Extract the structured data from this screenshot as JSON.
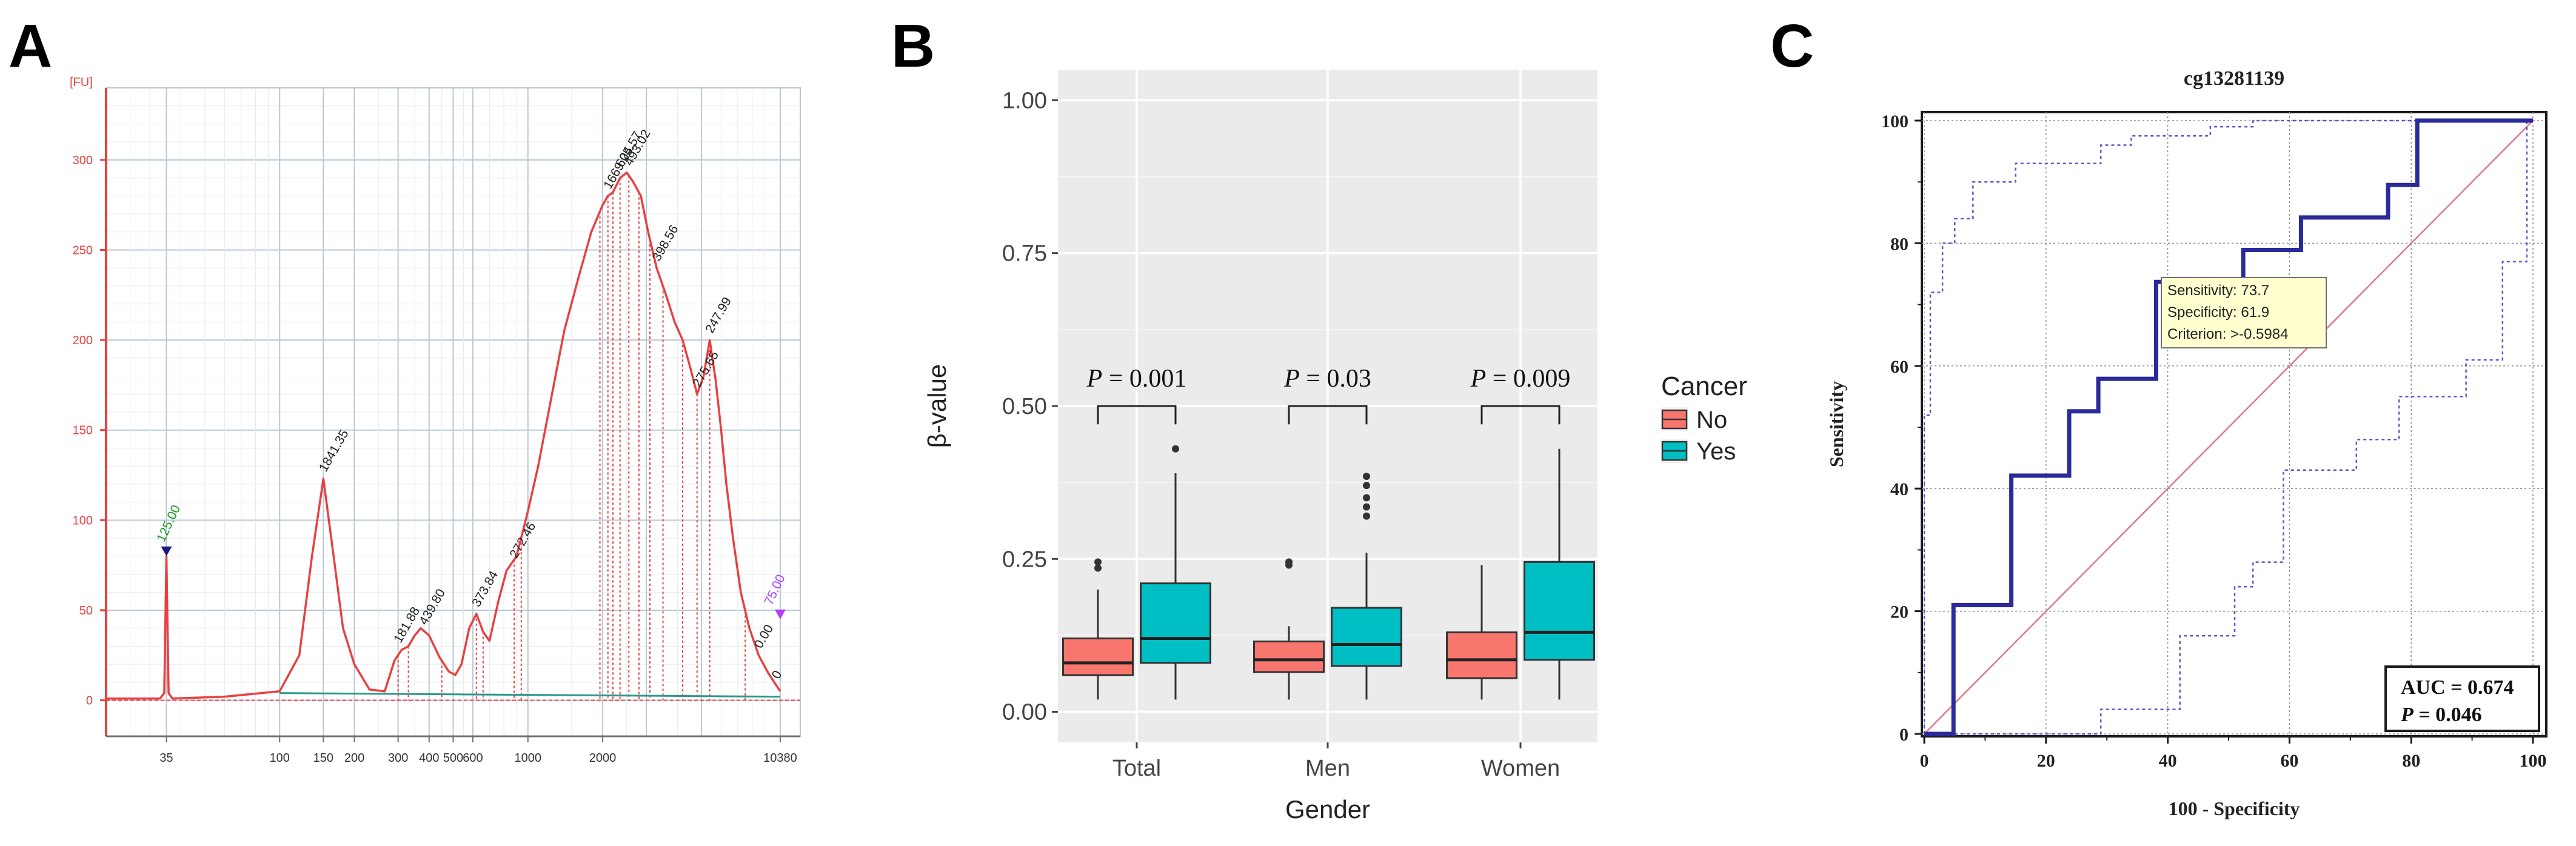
{
  "panels": {
    "A": "A",
    "B": "B",
    "C": "C"
  },
  "chart_data": [
    {
      "type": "line",
      "id": "electropherogram",
      "title": "",
      "ylabel_unit": "[FU]",
      "ylim": [
        -20,
        340
      ],
      "y_ticks": [
        0,
        50,
        100,
        150,
        200,
        250,
        300
      ],
      "x_scale": "log",
      "x_tick_labels": [
        "35",
        "100",
        "150",
        "200",
        "300",
        "400",
        "500",
        "600",
        "1000",
        "2000",
        "10380"
      ],
      "x_tick_values": [
        35,
        100,
        150,
        200,
        300,
        400,
        500,
        600,
        1000,
        2000,
        10380
      ],
      "x_major_grid": [
        35,
        100,
        150,
        200,
        300,
        400,
        500,
        600,
        1000,
        2000,
        3000,
        5000,
        10380
      ],
      "marker_lower": {
        "x": 35,
        "y": 80,
        "label": "125.00",
        "color": "#1a9a1a"
      },
      "marker_upper": {
        "x": 10380,
        "y": 45,
        "label": "75.00",
        "color": "#b040ff"
      },
      "trace_color": "#e84040",
      "baseline_color": "#2a9a8a",
      "trace": [
        [
          20,
          1
        ],
        [
          33,
          1
        ],
        [
          34.3,
          4
        ],
        [
          35,
          80
        ],
        [
          35.7,
          4
        ],
        [
          37,
          1
        ],
        [
          60,
          2
        ],
        [
          100,
          5
        ],
        [
          120,
          25
        ],
        [
          135,
          80
        ],
        [
          150,
          123
        ],
        [
          165,
          80
        ],
        [
          180,
          40
        ],
        [
          200,
          20
        ],
        [
          230,
          6
        ],
        [
          265,
          5
        ],
        [
          290,
          22
        ],
        [
          310,
          28
        ],
        [
          330,
          30
        ],
        [
          350,
          36
        ],
        [
          370,
          40
        ],
        [
          400,
          36
        ],
        [
          440,
          24
        ],
        [
          480,
          16
        ],
        [
          510,
          14
        ],
        [
          540,
          20
        ],
        [
          580,
          40
        ],
        [
          620,
          48
        ],
        [
          660,
          38
        ],
        [
          700,
          33
        ],
        [
          760,
          55
        ],
        [
          820,
          72
        ],
        [
          900,
          80
        ],
        [
          1000,
          105
        ],
        [
          1100,
          130
        ],
        [
          1250,
          170
        ],
        [
          1400,
          205
        ],
        [
          1600,
          235
        ],
        [
          1800,
          260
        ],
        [
          2000,
          275
        ],
        [
          2100,
          280
        ],
        [
          2200,
          282
        ],
        [
          2350,
          290
        ],
        [
          2500,
          293
        ],
        [
          2650,
          288
        ],
        [
          2850,
          280
        ],
        [
          3050,
          260
        ],
        [
          3300,
          240
        ],
        [
          3600,
          225
        ],
        [
          3900,
          210
        ],
        [
          4200,
          200
        ],
        [
          4500,
          185
        ],
        [
          4800,
          170
        ],
        [
          5100,
          180
        ],
        [
          5400,
          200
        ],
        [
          5700,
          178
        ],
        [
          6000,
          150
        ],
        [
          6300,
          120
        ],
        [
          6700,
          90
        ],
        [
          7200,
          60
        ],
        [
          7800,
          40
        ],
        [
          8500,
          25
        ],
        [
          9300,
          15
        ],
        [
          10380,
          5
        ]
      ],
      "peaks": [
        {
          "x": 150,
          "y": 123,
          "label": "1841.35"
        },
        {
          "x": 300,
          "y": 28,
          "label": "181.88"
        },
        {
          "x": 380,
          "y": 38,
          "label": "439.80"
        },
        {
          "x": 620,
          "y": 48,
          "label": "373.84"
        },
        {
          "x": 880,
          "y": 75,
          "label": "272.46"
        },
        {
          "x": 2100,
          "y": 280,
          "label": "1669.25"
        },
        {
          "x": 2350,
          "y": 292,
          "label": "604.57"
        },
        {
          "x": 2550,
          "y": 293,
          "label": "493.02"
        },
        {
          "x": 3300,
          "y": 240,
          "label": "398.56"
        },
        {
          "x": 4800,
          "y": 170,
          "label": "275.65"
        },
        {
          "x": 5400,
          "y": 200,
          "label": "247.99"
        },
        {
          "x": 8500,
          "y": 25,
          "label": "0.00"
        },
        {
          "x": 10000,
          "y": 8,
          "label": "0"
        }
      ],
      "dashed_verticals": [
        300,
        330,
        450,
        620,
        660,
        880,
        940,
        1950,
        2100,
        2200,
        2350,
        2550,
        2800,
        3100,
        3500,
        4200,
        4800,
        5400,
        7500
      ]
    },
    {
      "type": "box",
      "id": "boxplot",
      "title": "",
      "xlabel": "Gender",
      "ylabel": "β-value",
      "ylim": [
        -0.05,
        1.05
      ],
      "y_ticks": [
        "0.00",
        "0.25",
        "0.50",
        "0.75",
        "1.00"
      ],
      "y_tick_values": [
        0,
        0.25,
        0.5,
        0.75,
        1.0
      ],
      "categories": [
        "Total",
        "Men",
        "Women"
      ],
      "legend": {
        "title": "Cancer",
        "placement": "right",
        "entries": [
          {
            "label": "No",
            "color": "#f8766d"
          },
          {
            "label": "Yes",
            "color": "#00bfc4"
          }
        ]
      },
      "groups": [
        {
          "category": "Total",
          "p_prefix": "P",
          "p_value": " = 0.001",
          "boxes": [
            {
              "series": "No",
              "q1": 0.06,
              "median": 0.08,
              "q3": 0.12,
              "whisker_low": 0.02,
              "whisker_high": 0.2,
              "outliers": [
                0.235,
                0.245
              ]
            },
            {
              "series": "Yes",
              "q1": 0.08,
              "median": 0.12,
              "q3": 0.21,
              "whisker_low": 0.02,
              "whisker_high": 0.39,
              "outliers": [
                0.43
              ]
            }
          ]
        },
        {
          "category": "Men",
          "p_prefix": "P",
          "p_value": " = 0.03",
          "boxes": [
            {
              "series": "No",
              "q1": 0.065,
              "median": 0.085,
              "q3": 0.115,
              "whisker_low": 0.02,
              "whisker_high": 0.14,
              "outliers": [
                0.24,
                0.245
              ]
            },
            {
              "series": "Yes",
              "q1": 0.075,
              "median": 0.11,
              "q3": 0.17,
              "whisker_low": 0.02,
              "whisker_high": 0.26,
              "outliers": [
                0.32,
                0.335,
                0.35,
                0.37,
                0.385
              ]
            }
          ]
        },
        {
          "category": "Women",
          "p_prefix": "P",
          "p_value": " = 0.009",
          "boxes": [
            {
              "series": "No",
              "q1": 0.055,
              "median": 0.085,
              "q3": 0.13,
              "whisker_low": 0.02,
              "whisker_high": 0.24,
              "outliers": []
            },
            {
              "series": "Yes",
              "q1": 0.085,
              "median": 0.13,
              "q3": 0.245,
              "whisker_low": 0.02,
              "whisker_high": 0.43,
              "outliers": []
            }
          ]
        }
      ]
    },
    {
      "type": "line",
      "id": "roc",
      "title": "cg13281139",
      "xlabel": "100 - Specificity",
      "ylabel": "Sensitivity",
      "xlim": [
        0,
        100
      ],
      "ylim": [
        0,
        100
      ],
      "x_ticks": [
        0,
        20,
        40,
        60,
        80,
        100
      ],
      "y_ticks": [
        0,
        20,
        40,
        60,
        80,
        100
      ],
      "roc_curve": [
        [
          0,
          0
        ],
        [
          4.8,
          0
        ],
        [
          4.8,
          21
        ],
        [
          14.3,
          21
        ],
        [
          14.3,
          42.1
        ],
        [
          23.8,
          42.1
        ],
        [
          23.8,
          52.6
        ],
        [
          28.6,
          52.6
        ],
        [
          28.6,
          57.9
        ],
        [
          38.1,
          57.9
        ],
        [
          38.1,
          73.7
        ],
        [
          52.4,
          73.7
        ],
        [
          52.4,
          78.9
        ],
        [
          61.9,
          78.9
        ],
        [
          61.9,
          84.2
        ],
        [
          76.2,
          84.2
        ],
        [
          76.2,
          89.5
        ],
        [
          81,
          89.5
        ],
        [
          81,
          100
        ],
        [
          100,
          100
        ]
      ],
      "ci_upper": [
        [
          0,
          0
        ],
        [
          0,
          52
        ],
        [
          1,
          52
        ],
        [
          1,
          72
        ],
        [
          3,
          72
        ],
        [
          3,
          80
        ],
        [
          5,
          80
        ],
        [
          5,
          84
        ],
        [
          8,
          84
        ],
        [
          8,
          90
        ],
        [
          15,
          90
        ],
        [
          15,
          93
        ],
        [
          29,
          93
        ],
        [
          29,
          96
        ],
        [
          34,
          96
        ],
        [
          34,
          97.5
        ],
        [
          47,
          97.5
        ],
        [
          47,
          99
        ],
        [
          54,
          99
        ],
        [
          54,
          100
        ],
        [
          100,
          100
        ]
      ],
      "ci_lower": [
        [
          0,
          0
        ],
        [
          29,
          0
        ],
        [
          29,
          4
        ],
        [
          42,
          4
        ],
        [
          42,
          16
        ],
        [
          51,
          16
        ],
        [
          51,
          24
        ],
        [
          54,
          24
        ],
        [
          54,
          28
        ],
        [
          59,
          28
        ],
        [
          59,
          43
        ],
        [
          71,
          43
        ],
        [
          71,
          48
        ],
        [
          78,
          48
        ],
        [
          78,
          55
        ],
        [
          89,
          55
        ],
        [
          89,
          61
        ],
        [
          95,
          61
        ],
        [
          95,
          77
        ],
        [
          99,
          77
        ],
        [
          99,
          100
        ],
        [
          100,
          100
        ]
      ],
      "diagonal_color": "#d87a8a",
      "curve_color": "#2a2a9a",
      "ci_color": "#5a5ac8",
      "criterion_point": [
        38.1,
        73.7
      ],
      "tooltip": {
        "sensitivity": "Sensitivity: 73.7",
        "specificity": "Specificity: 61.9",
        "criterion": "Criterion: >-0.5984"
      },
      "summary": {
        "auc": "AUC = 0.674",
        "p_prefix": "P",
        "p_value": " = 0.046"
      }
    }
  ]
}
